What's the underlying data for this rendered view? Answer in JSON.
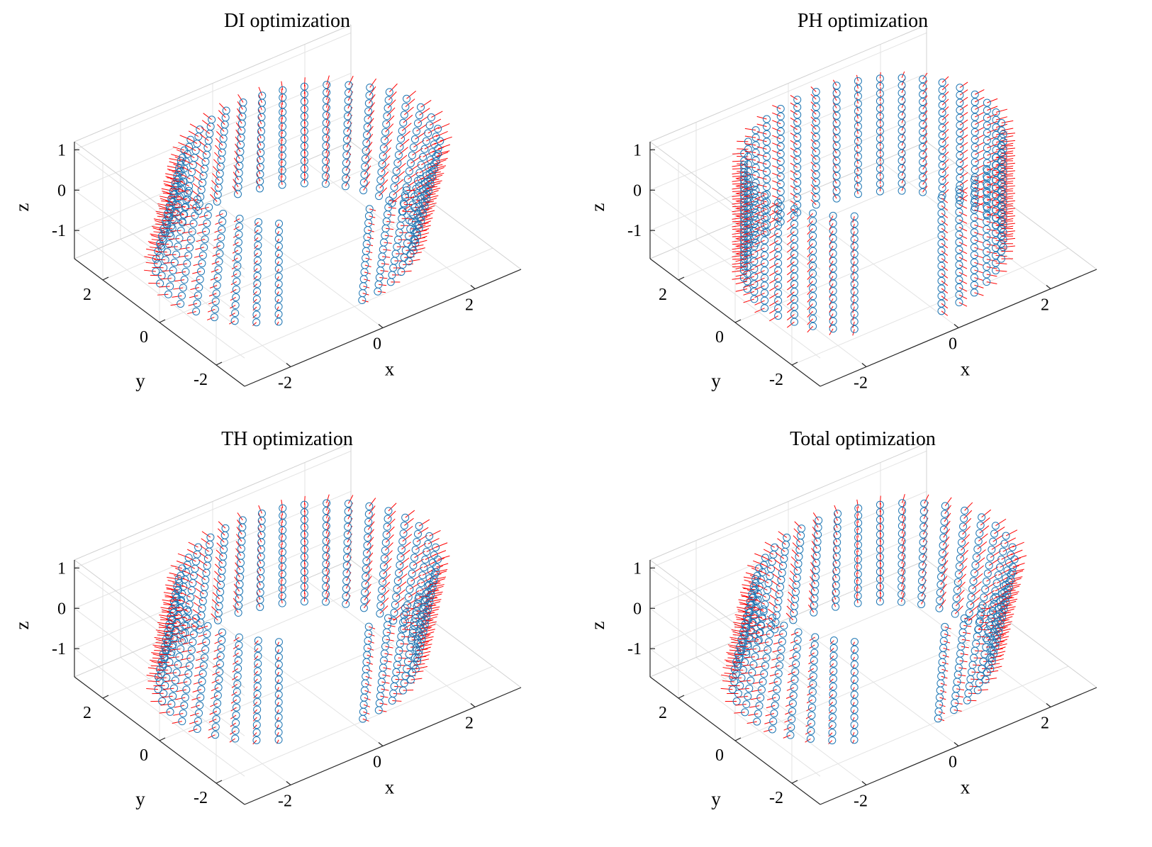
{
  "chart_data": [
    {
      "type": "scatter",
      "subtype": "3d-scatter-with-normal-vectors",
      "title": "DI optimization",
      "xlabel": "x",
      "ylabel": "y",
      "zlabel": "z",
      "xticks": [
        "-2",
        "0",
        "2"
      ],
      "yticks": [
        "-2",
        "0",
        "2"
      ],
      "zticks": [
        "-1",
        "0",
        "1"
      ],
      "xlim": [
        -3,
        3
      ],
      "ylim": [
        -3,
        3
      ],
      "zlim": [
        -1.7,
        1.2
      ],
      "grid": true,
      "surface": {
        "radius": 2.4,
        "z_range": [
          -1.4,
          1.0
        ],
        "theta_start_deg": -90,
        "theta_span_deg": 320,
        "columns": 34,
        "rows": 14,
        "tilt": 0.55
      },
      "colors": {
        "markers": "#1f77b4",
        "vectors": "#ff0000"
      }
    },
    {
      "type": "scatter",
      "subtype": "3d-scatter-with-normal-vectors",
      "title": "PH optimization",
      "xlabel": "x",
      "ylabel": "y",
      "zlabel": "z",
      "xticks": [
        "-2",
        "0",
        "2"
      ],
      "yticks": [
        "-2",
        "0",
        "2"
      ],
      "zticks": [
        "-1",
        "0",
        "1"
      ],
      "xlim": [
        -3,
        3
      ],
      "ylim": [
        -3,
        3
      ],
      "zlim": [
        -1.7,
        1.2
      ],
      "grid": true,
      "surface": {
        "radius": 2.4,
        "z_range": [
          -1.6,
          1.2
        ],
        "theta_start_deg": -90,
        "theta_span_deg": 320,
        "columns": 34,
        "rows": 16,
        "tilt": 0.0
      },
      "colors": {
        "markers": "#1f77b4",
        "vectors": "#ff0000"
      }
    },
    {
      "type": "scatter",
      "subtype": "3d-scatter-with-normal-vectors",
      "title": "TH optimization",
      "xlabel": "x",
      "ylabel": "y",
      "zlabel": "z",
      "xticks": [
        "-2",
        "0",
        "2"
      ],
      "yticks": [
        "-2",
        "0",
        "2"
      ],
      "zticks": [
        "-1",
        "0",
        "1"
      ],
      "xlim": [
        -3,
        3
      ],
      "ylim": [
        -3,
        3
      ],
      "zlim": [
        -1.7,
        1.2
      ],
      "grid": true,
      "surface": {
        "radius": 2.4,
        "z_range": [
          -1.4,
          1.0
        ],
        "theta_start_deg": -90,
        "theta_span_deg": 320,
        "columns": 34,
        "rows": 14,
        "tilt": 0.45
      },
      "colors": {
        "markers": "#1f77b4",
        "vectors": "#ff0000"
      }
    },
    {
      "type": "scatter",
      "subtype": "3d-scatter-with-normal-vectors",
      "title": "Total optimization",
      "xlabel": "x",
      "ylabel": "y",
      "zlabel": "z",
      "xticks": [
        "-2",
        "0",
        "2"
      ],
      "yticks": [
        "-2",
        "0",
        "2"
      ],
      "zticks": [
        "-1",
        "0",
        "1"
      ],
      "xlim": [
        -3,
        3
      ],
      "ylim": [
        -3,
        3
      ],
      "zlim": [
        -1.7,
        1.2
      ],
      "grid": true,
      "surface": {
        "radius": 2.4,
        "z_range": [
          -1.4,
          1.0
        ],
        "theta_start_deg": -90,
        "theta_span_deg": 320,
        "columns": 34,
        "rows": 14,
        "tilt": 0.5
      },
      "colors": {
        "markers": "#1f77b4",
        "vectors": "#ff0000"
      }
    }
  ]
}
